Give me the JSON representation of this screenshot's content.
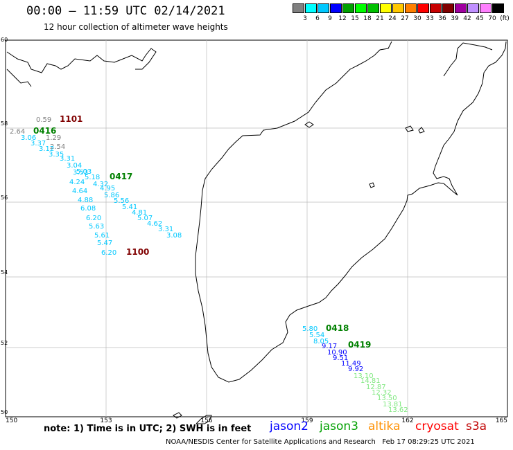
{
  "header": {
    "title": "00:00 – 11:59 UTC 02/14/2021",
    "subtitle": "12 hour collection of altimeter wave heights"
  },
  "legend": {
    "colors": [
      "#808080",
      "#00ffff",
      "#00c8ff",
      "#0000ff",
      "#00a000",
      "#00ff00",
      "#00c000",
      "#ffff00",
      "#ffc800",
      "#ff8000",
      "#ff0000",
      "#c80000",
      "#800000",
      "#a000a0",
      "#c090ff",
      "#ff80ff",
      "#000000"
    ],
    "labels": [
      "3",
      "6",
      "9",
      "12",
      "15",
      "18",
      "21",
      "24",
      "27",
      "30",
      "33",
      "36",
      "39",
      "42",
      "45",
      "70"
    ],
    "unit": "(ft)"
  },
  "map": {
    "lat_labels": [
      "60",
      "58",
      "56",
      "54",
      "52",
      "50"
    ],
    "lon_labels": [
      "150",
      "153",
      "156",
      "159",
      "162",
      "165"
    ],
    "tracks": [
      {
        "id": "1101",
        "color": "#800000",
        "points": [
          {
            "v": "0.59",
            "c": "#808080"
          }
        ]
      },
      {
        "id": "0416",
        "color": "#008000",
        "points": [
          {
            "v": "2.64",
            "c": "#808080"
          },
          {
            "v": "1.29",
            "c": "#808080"
          },
          {
            "v": "3.06",
            "c": "#00c8ff"
          },
          {
            "v": "2.54",
            "c": "#808080"
          },
          {
            "v": "3.37",
            "c": "#00c8ff"
          },
          {
            "v": "3.12",
            "c": "#00c8ff"
          },
          {
            "v": "3.35",
            "c": "#00c8ff"
          },
          {
            "v": "3.31",
            "c": "#00c8ff"
          },
          {
            "v": "3.04",
            "c": "#00c8ff"
          },
          {
            "v": "3.53",
            "c": "#00c8ff"
          },
          {
            "v": "4.24",
            "c": "#00c8ff"
          },
          {
            "v": "4.64",
            "c": "#00c8ff"
          },
          {
            "v": "4.88",
            "c": "#00c8ff"
          },
          {
            "v": "6.08",
            "c": "#00c8ff"
          },
          {
            "v": "6.20",
            "c": "#00c8ff"
          },
          {
            "v": "5.63",
            "c": "#00c8ff"
          },
          {
            "v": "5.61",
            "c": "#00c8ff"
          },
          {
            "v": "5.47",
            "c": "#00c8ff"
          },
          {
            "v": "6.20",
            "c": "#00c8ff"
          }
        ]
      },
      {
        "id": "0417",
        "color": "#008000",
        "points": [
          {
            "v": "5.03",
            "c": "#00c8ff"
          },
          {
            "v": "5.18",
            "c": "#00c8ff"
          },
          {
            "v": "4.32",
            "c": "#00c8ff"
          },
          {
            "v": "4.95",
            "c": "#00c8ff"
          },
          {
            "v": "5.86",
            "c": "#00c8ff"
          },
          {
            "v": "5.56",
            "c": "#00c8ff"
          },
          {
            "v": "5.41",
            "c": "#00c8ff"
          },
          {
            "v": "4.81",
            "c": "#00c8ff"
          },
          {
            "v": "5.07",
            "c": "#00c8ff"
          },
          {
            "v": "4.62",
            "c": "#00c8ff"
          },
          {
            "v": "3.31",
            "c": "#00c8ff"
          },
          {
            "v": "3.08",
            "c": "#00c8ff"
          }
        ]
      },
      {
        "id": "1100",
        "color": "#800000",
        "points": []
      },
      {
        "id": "0418",
        "color": "#008000",
        "points": [
          {
            "v": "5.80",
            "c": "#00c8ff"
          },
          {
            "v": "5.54",
            "c": "#00c8ff"
          },
          {
            "v": "8.05",
            "c": "#00c8ff"
          },
          {
            "v": "9.17",
            "c": "#0000ff"
          },
          {
            "v": "10.90",
            "c": "#0000ff"
          },
          {
            "v": "9.51",
            "c": "#0000ff"
          },
          {
            "v": "11.49",
            "c": "#0000ff"
          },
          {
            "v": "9.92",
            "c": "#0000ff"
          }
        ]
      },
      {
        "id": "0419",
        "color": "#008000",
        "points": [
          {
            "v": "13.10",
            "c": "#80e880"
          },
          {
            "v": "14.81",
            "c": "#80e880"
          },
          {
            "v": "12.87",
            "c": "#80e880"
          },
          {
            "v": "12.32",
            "c": "#80e880"
          },
          {
            "v": "13.50",
            "c": "#80e880"
          },
          {
            "v": "13.81",
            "c": "#80e880"
          },
          {
            "v": "13.62",
            "c": "#80e880"
          }
        ]
      }
    ]
  },
  "footer": {
    "note": "note: 1) Time is in UTC; 2) SWH is in feet",
    "satellites": [
      {
        "name": "jason2",
        "color": "#0000ff"
      },
      {
        "name": "jason3",
        "color": "#00a000"
      },
      {
        "name": "altika",
        "color": "#ff9000"
      },
      {
        "name": "cryosat",
        "color": "#ff0000"
      },
      {
        "name": "s3a",
        "color": "#c00000"
      }
    ],
    "credit": "NOAA/NESDIS Center for Satellite Applications and Research   Feb 17 08:29:25 UTC 2021"
  }
}
